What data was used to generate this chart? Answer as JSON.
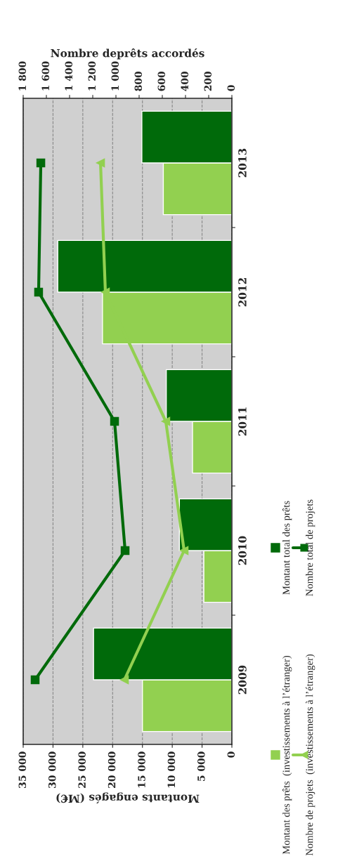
{
  "chart_data": {
    "type": "bar",
    "orientation": "horizontal",
    "categories": [
      "2013",
      "2012",
      "2011",
      "2010",
      "2009"
    ],
    "xlabel": "Montants engagés (M€)",
    "x2label": "Nombre deprêts accordés",
    "xlim": [
      35000,
      0
    ],
    "xticks": [
      {
        "value": 35000,
        "label": "35 000"
      },
      {
        "value": 30000,
        "label": "30 000"
      },
      {
        "value": 25000,
        "label": "25 000"
      },
      {
        "value": 20000,
        "label": "20 000"
      },
      {
        "value": 15000,
        "label": "15 000"
      },
      {
        "value": 10000,
        "label": "10 000"
      },
      {
        "value": 5000,
        "label": "5 000"
      },
      0
    ],
    "x2lim": [
      1800,
      0
    ],
    "x2ticks": [
      {
        "value": 1800,
        "label": "1 800"
      },
      {
        "value": 1600,
        "label": "1 600"
      },
      {
        "value": 1400,
        "label": "1 400"
      },
      {
        "value": 1200,
        "label": "1 200"
      },
      {
        "value": 1000,
        "label": "1 000"
      },
      800,
      600,
      400,
      200,
      0
    ],
    "grid": "x",
    "legend": "right",
    "series": [
      {
        "name": "Montant des prêts  (investissements à l’étranger)",
        "color": "#92d050",
        "values": [
          11500,
          21700,
          6600,
          4700,
          15000
        ]
      },
      {
        "name": "Montant total des prêts",
        "color": "#006a0a",
        "values": [
          15100,
          29200,
          11000,
          8800,
          23200
        ]
      },
      {
        "name": "Nombre de projets  (investissements à l’étranger)",
        "type": "line",
        "axis": "x2",
        "marker": "triangle",
        "line_style": "solid",
        "color": "#92d050",
        "values": [
          1133,
          1091,
          570,
          412,
          927
        ]
      },
      {
        "name": "Nombre total de projets",
        "type": "line",
        "axis": "x2",
        "marker": "square",
        "line_style": "solid",
        "color": "#006a0a",
        "values": [
          1648,
          1667,
          1012,
          921,
          1697
        ]
      }
    ]
  }
}
